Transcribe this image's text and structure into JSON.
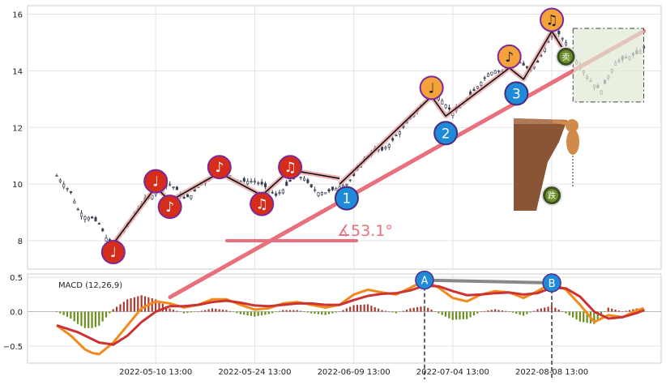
{
  "chart_data": [
    {
      "type": "candlestick",
      "panel": "price",
      "ylim": [
        7.0,
        16.3
      ],
      "yticks": [
        8,
        10,
        12,
        14,
        16
      ],
      "x_tick_labels": [
        "2022-05-10 13:00",
        "2022-05-24 13:00",
        "2022-06-09 13:00",
        "2022-07-04 13:00",
        "2022-08-08 13:00"
      ],
      "grid": true,
      "price_path": [
        [
          0,
          10.3
        ],
        [
          4,
          9.7
        ],
        [
          6,
          9.1
        ],
        [
          8,
          8.85
        ],
        [
          10,
          8.8
        ],
        [
          12,
          8.6
        ],
        [
          14,
          8.1
        ],
        [
          16,
          7.8
        ],
        [
          18,
          8.2
        ],
        [
          20,
          8.5
        ],
        [
          22,
          9.0
        ],
        [
          24,
          9.3
        ],
        [
          26,
          9.5
        ],
        [
          28,
          9.7
        ],
        [
          30,
          9.9
        ],
        [
          32,
          10.0
        ],
        [
          34,
          9.8
        ],
        [
          36,
          9.5
        ],
        [
          38,
          9.6
        ],
        [
          40,
          9.9
        ],
        [
          42,
          10.1
        ],
        [
          44,
          10.3
        ],
        [
          46,
          10.5
        ],
        [
          48,
          10.4
        ],
        [
          50,
          10.2
        ],
        [
          52,
          10.1
        ],
        [
          54,
          10.1
        ],
        [
          56,
          10.1
        ],
        [
          58,
          10.0
        ],
        [
          60,
          9.8
        ],
        [
          62,
          9.6
        ],
        [
          64,
          9.8
        ],
        [
          66,
          10.1
        ],
        [
          68,
          10.3
        ],
        [
          70,
          10.2
        ],
        [
          72,
          9.9
        ],
        [
          74,
          9.7
        ],
        [
          76,
          9.7
        ],
        [
          78,
          9.8
        ],
        [
          80,
          9.9
        ],
        [
          82,
          10.0
        ],
        [
          84,
          10.3
        ],
        [
          86,
          10.7
        ],
        [
          88,
          11.0
        ],
        [
          90,
          11.2
        ],
        [
          92,
          11.2
        ],
        [
          94,
          11.4
        ],
        [
          96,
          11.7
        ],
        [
          98,
          12.0
        ],
        [
          100,
          12.3
        ],
        [
          102,
          12.6
        ],
        [
          104,
          12.9
        ],
        [
          106,
          13.2
        ],
        [
          108,
          13.1
        ],
        [
          110,
          12.8
        ],
        [
          112,
          12.5
        ],
        [
          114,
          12.7
        ],
        [
          116,
          13.0
        ],
        [
          118,
          13.3
        ],
        [
          120,
          13.6
        ],
        [
          122,
          13.9
        ],
        [
          124,
          14.0
        ],
        [
          126,
          14.0
        ],
        [
          128,
          14.2
        ],
        [
          130,
          14.4
        ],
        [
          132,
          14.2
        ],
        [
          134,
          14.0
        ],
        [
          136,
          14.3
        ],
        [
          138,
          14.8
        ],
        [
          140,
          15.2
        ],
        [
          142,
          15.3
        ],
        [
          144,
          15.0
        ],
        [
          146,
          14.5
        ],
        [
          148,
          14.2
        ],
        [
          150,
          13.8
        ],
        [
          152,
          13.5
        ],
        [
          154,
          13.3
        ],
        [
          156,
          13.8
        ],
        [
          158,
          14.3
        ],
        [
          160,
          14.4
        ],
        [
          162,
          14.5
        ],
        [
          164,
          14.6
        ],
        [
          166,
          14.8
        ]
      ],
      "trend_line_from": [
        32,
        9.9
      ],
      "trend_line_to": [
        166,
        15.4
      ],
      "angle_label": "∡53.1°",
      "wave_markers": [
        {
          "label": "♩",
          "x": 16,
          "y": 7.6,
          "style": "red"
        },
        {
          "label": "♩",
          "x": 28,
          "y": 10.1,
          "style": "red"
        },
        {
          "label": "♪",
          "x": 32,
          "y": 9.2,
          "style": "red"
        },
        {
          "label": "♪",
          "x": 46,
          "y": 10.6,
          "style": "red"
        },
        {
          "label": "♫",
          "x": 58,
          "y": 9.3,
          "style": "red"
        },
        {
          "label": "♫",
          "x": 66,
          "y": 10.6,
          "style": "red"
        },
        {
          "label": "1",
          "x": 82,
          "y": 9.5,
          "style": "blue"
        },
        {
          "label": "♩",
          "x": 106,
          "y": 13.4,
          "style": "orange"
        },
        {
          "label": "2",
          "x": 110,
          "y": 11.8,
          "style": "blue"
        },
        {
          "label": "♪",
          "x": 128,
          "y": 14.5,
          "style": "orange"
        },
        {
          "label": "3",
          "x": 130,
          "y": 13.2,
          "style": "blue"
        },
        {
          "label": "♫",
          "x": 140,
          "y": 15.8,
          "style": "orange"
        }
      ],
      "signal_badges": [
        {
          "label": "卖",
          "x": 144,
          "y": 14.5
        },
        {
          "label": "跌",
          "x": 140,
          "y": 9.6
        }
      ]
    },
    {
      "type": "macd",
      "panel": "macd",
      "title": "MACD (12,26,9)",
      "ylim": [
        -0.75,
        0.55
      ],
      "yticks": [
        0.5,
        0.0,
        -0.5
      ],
      "ytick_labels": [
        "0.5",
        "0.0",
        "−0.5"
      ],
      "dif": [
        [
          0,
          -0.2
        ],
        [
          4,
          -0.35
        ],
        [
          8,
          -0.55
        ],
        [
          10,
          -0.6
        ],
        [
          12,
          -0.62
        ],
        [
          16,
          -0.45
        ],
        [
          20,
          -0.2
        ],
        [
          24,
          0.05
        ],
        [
          28,
          0.15
        ],
        [
          32,
          0.12
        ],
        [
          36,
          0.06
        ],
        [
          40,
          0.1
        ],
        [
          44,
          0.18
        ],
        [
          48,
          0.18
        ],
        [
          52,
          0.1
        ],
        [
          56,
          0.03
        ],
        [
          60,
          0.05
        ],
        [
          64,
          0.12
        ],
        [
          68,
          0.14
        ],
        [
          72,
          0.1
        ],
        [
          76,
          0.06
        ],
        [
          80,
          0.1
        ],
        [
          84,
          0.25
        ],
        [
          88,
          0.32
        ],
        [
          92,
          0.28
        ],
        [
          96,
          0.25
        ],
        [
          100,
          0.35
        ],
        [
          104,
          0.45
        ],
        [
          108,
          0.35
        ],
        [
          112,
          0.2
        ],
        [
          116,
          0.15
        ],
        [
          120,
          0.25
        ],
        [
          124,
          0.3
        ],
        [
          128,
          0.28
        ],
        [
          132,
          0.2
        ],
        [
          136,
          0.3
        ],
        [
          140,
          0.42
        ],
        [
          144,
          0.32
        ],
        [
          148,
          0.1
        ],
        [
          152,
          -0.15
        ],
        [
          156,
          -0.05
        ],
        [
          160,
          -0.08
        ],
        [
          164,
          0.02
        ],
        [
          166,
          0.05
        ]
      ],
      "dea": [
        [
          0,
          -0.2
        ],
        [
          6,
          -0.3
        ],
        [
          12,
          -0.45
        ],
        [
          16,
          -0.48
        ],
        [
          20,
          -0.35
        ],
        [
          24,
          -0.15
        ],
        [
          28,
          0.0
        ],
        [
          32,
          0.08
        ],
        [
          36,
          0.08
        ],
        [
          40,
          0.1
        ],
        [
          44,
          0.14
        ],
        [
          48,
          0.16
        ],
        [
          52,
          0.13
        ],
        [
          56,
          0.09
        ],
        [
          60,
          0.08
        ],
        [
          64,
          0.1
        ],
        [
          68,
          0.12
        ],
        [
          72,
          0.12
        ],
        [
          76,
          0.1
        ],
        [
          80,
          0.1
        ],
        [
          84,
          0.17
        ],
        [
          88,
          0.23
        ],
        [
          92,
          0.26
        ],
        [
          96,
          0.27
        ],
        [
          100,
          0.31
        ],
        [
          104,
          0.38
        ],
        [
          108,
          0.37
        ],
        [
          112,
          0.3
        ],
        [
          116,
          0.24
        ],
        [
          120,
          0.25
        ],
        [
          124,
          0.27
        ],
        [
          128,
          0.28
        ],
        [
          132,
          0.25
        ],
        [
          136,
          0.27
        ],
        [
          140,
          0.35
        ],
        [
          144,
          0.34
        ],
        [
          148,
          0.22
        ],
        [
          152,
          0.0
        ],
        [
          156,
          -0.1
        ],
        [
          160,
          -0.08
        ],
        [
          164,
          -0.02
        ],
        [
          166,
          0.02
        ]
      ],
      "divergence_points": [
        {
          "label": "A",
          "x": 104,
          "y": 0.46
        },
        {
          "label": "B",
          "x": 140,
          "y": 0.42
        }
      ]
    }
  ]
}
